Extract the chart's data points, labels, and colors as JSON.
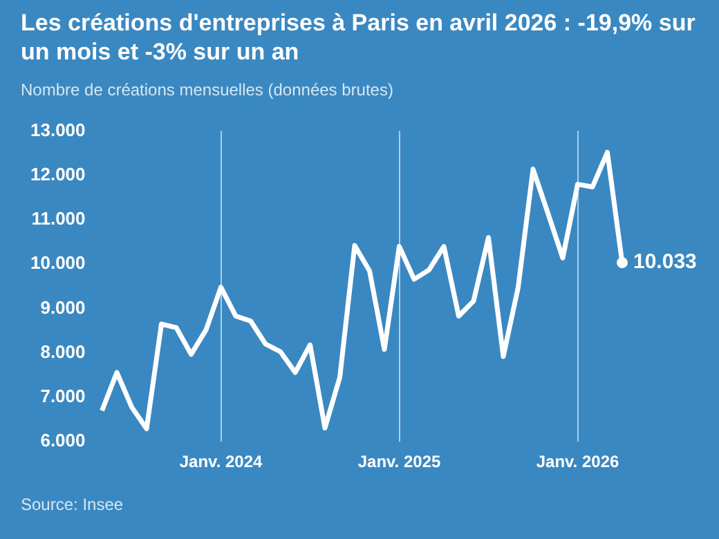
{
  "chart_data": {
    "type": "line",
    "title": "Les créations d'entreprises à Paris en avril 2026 : -19,9% sur un mois et -3% sur un an",
    "subtitle": "Nombre de créations mensuelles (données brutes)",
    "annotations": [
      "Source: Insee"
    ],
    "categories": [
      null,
      null,
      null,
      null,
      null,
      null,
      null,
      null,
      "Janv. 2024",
      null,
      null,
      null,
      null,
      null,
      null,
      null,
      null,
      null,
      null,
      null,
      "Janv. 2025",
      null,
      null,
      null,
      null,
      null,
      null,
      null,
      null,
      null,
      null,
      null,
      "Janv. 2026",
      null,
      null,
      null
    ],
    "series": [
      {
        "color": "#ffffff",
        "values": [
          6700,
          7560,
          6780,
          6290,
          8650,
          8570,
          7970,
          8520,
          9480,
          8830,
          8720,
          8200,
          8030,
          7560,
          8180,
          6310,
          7450,
          10420,
          9850,
          8080,
          10400,
          9660,
          9870,
          10400,
          8830,
          9170,
          10600,
          7920,
          9480,
          12140,
          11150,
          10140,
          11800,
          11740,
          12520,
          10033
        ],
        "value_labels": [
          null,
          null,
          null,
          null,
          null,
          null,
          null,
          null,
          null,
          null,
          null,
          null,
          null,
          null,
          null,
          null,
          null,
          null,
          null,
          null,
          null,
          null,
          null,
          null,
          null,
          null,
          null,
          null,
          null,
          null,
          null,
          null,
          null,
          null,
          null,
          "10.033"
        ]
      }
    ],
    "ylim": [
      6000,
      13000
    ],
    "yticks": [
      {
        "value": 6000,
        "label": "6.000"
      },
      {
        "value": 7000,
        "label": "7.000"
      },
      {
        "value": 8000,
        "label": "8.000"
      },
      {
        "value": 9000,
        "label": "9.000"
      },
      {
        "value": 10000,
        "label": "10.000"
      },
      {
        "value": 11000,
        "label": "11.000"
      },
      {
        "value": 12000,
        "label": "12.000"
      },
      {
        "value": 13000,
        "label": "13.000"
      }
    ],
    "grid": "x",
    "legend": false
  }
}
